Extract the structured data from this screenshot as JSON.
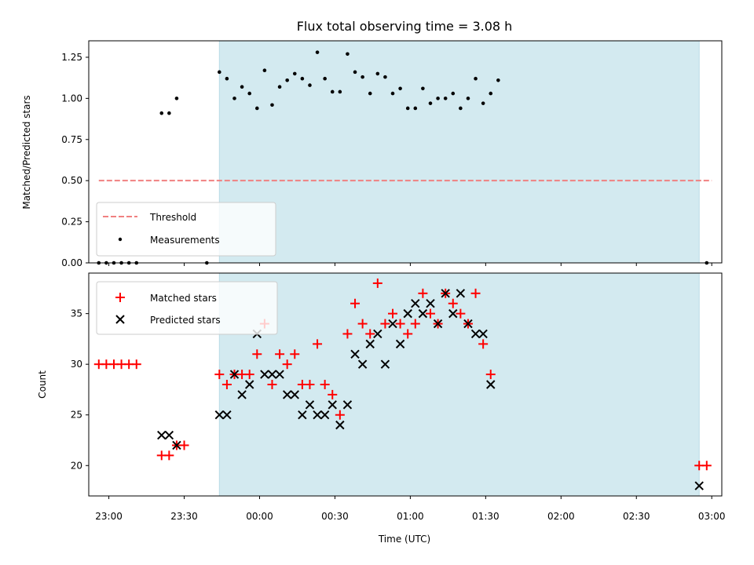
{
  "chart_data": [
    {
      "type": "scatter",
      "title": "Flux total observing time = 3.08 h",
      "ylabel": "Matched/Predicted stars",
      "xlim": [
        "22:52",
        "03:04"
      ],
      "ylim": [
        0,
        1.35
      ],
      "yticks": [
        "0.00",
        "0.25",
        "0.50",
        "0.75",
        "1.00",
        "1.25"
      ],
      "highlight_span": {
        "start": "23:44",
        "end": "02:55",
        "color": "#d3eaf0"
      },
      "legend_position": "lower-left",
      "threshold": {
        "name": "Threshold",
        "y": 0.5,
        "x_start": "22:56",
        "x_end": "03:00",
        "color": "#f08080"
      },
      "series": [
        {
          "name": "Measurements",
          "color": "#000000",
          "points": [
            [
              "22:56",
              0.0
            ],
            [
              "22:59",
              0.0
            ],
            [
              "23:02",
              0.0
            ],
            [
              "23:05",
              0.0
            ],
            [
              "23:08",
              0.0
            ],
            [
              "23:11",
              0.0
            ],
            [
              "23:21",
              0.91
            ],
            [
              "23:24",
              0.91
            ],
            [
              "23:27",
              1.0
            ],
            [
              "23:39",
              0.0
            ],
            [
              "23:44",
              1.16
            ],
            [
              "23:47",
              1.12
            ],
            [
              "23:50",
              1.0
            ],
            [
              "23:53",
              1.07
            ],
            [
              "23:56",
              1.03
            ],
            [
              "23:59",
              0.94
            ],
            [
              "00:02",
              1.17
            ],
            [
              "00:05",
              0.96
            ],
            [
              "00:08",
              1.07
            ],
            [
              "00:11",
              1.11
            ],
            [
              "00:14",
              1.15
            ],
            [
              "00:17",
              1.12
            ],
            [
              "00:20",
              1.08
            ],
            [
              "00:23",
              1.28
            ],
            [
              "00:26",
              1.12
            ],
            [
              "00:29",
              1.04
            ],
            [
              "00:32",
              1.04
            ],
            [
              "00:35",
              1.27
            ],
            [
              "00:38",
              1.16
            ],
            [
              "00:41",
              1.13
            ],
            [
              "00:44",
              1.03
            ],
            [
              "00:47",
              1.15
            ],
            [
              "00:50",
              1.13
            ],
            [
              "00:53",
              1.03
            ],
            [
              "00:56",
              1.06
            ],
            [
              "00:59",
              0.94
            ],
            [
              "01:02",
              0.94
            ],
            [
              "01:05",
              1.06
            ],
            [
              "01:08",
              0.97
            ],
            [
              "01:11",
              1.0
            ],
            [
              "01:14",
              1.0
            ],
            [
              "01:17",
              1.03
            ],
            [
              "01:20",
              0.94
            ],
            [
              "01:23",
              1.0
            ],
            [
              "01:26",
              1.12
            ],
            [
              "01:29",
              0.97
            ],
            [
              "01:32",
              1.03
            ],
            [
              "01:35",
              1.11
            ],
            [
              "02:58",
              0.0
            ]
          ]
        }
      ]
    },
    {
      "type": "scatter",
      "xlabel": "Time (UTC)",
      "ylabel": "Count",
      "xlim": [
        "22:52",
        "03:04"
      ],
      "ylim": [
        17,
        39
      ],
      "xticks": [
        "23:00",
        "23:30",
        "00:00",
        "00:30",
        "01:00",
        "01:30",
        "02:00",
        "02:30",
        "03:00"
      ],
      "yticks": [
        "20",
        "25",
        "30",
        "35"
      ],
      "highlight_span": {
        "start": "23:44",
        "end": "02:55",
        "color": "#d3eaf0"
      },
      "legend_position": "upper-left",
      "series": [
        {
          "name": "Matched stars",
          "marker": "+",
          "color": "#ff0000",
          "points": [
            [
              "22:56",
              30
            ],
            [
              "22:59",
              30
            ],
            [
              "23:02",
              30
            ],
            [
              "23:05",
              30
            ],
            [
              "23:08",
              30
            ],
            [
              "23:11",
              30
            ],
            [
              "23:21",
              21
            ],
            [
              "23:24",
              21
            ],
            [
              "23:27",
              22
            ],
            [
              "23:30",
              22
            ],
            [
              "23:44",
              29
            ],
            [
              "23:47",
              28
            ],
            [
              "23:50",
              29
            ],
            [
              "23:53",
              29
            ],
            [
              "23:56",
              29
            ],
            [
              "23:59",
              31
            ],
            [
              "00:02",
              34
            ],
            [
              "00:05",
              28
            ],
            [
              "00:08",
              31
            ],
            [
              "00:11",
              30
            ],
            [
              "00:14",
              31
            ],
            [
              "00:17",
              28
            ],
            [
              "00:20",
              28
            ],
            [
              "00:23",
              32
            ],
            [
              "00:26",
              28
            ],
            [
              "00:29",
              27
            ],
            [
              "00:32",
              25
            ],
            [
              "00:35",
              33
            ],
            [
              "00:38",
              36
            ],
            [
              "00:41",
              34
            ],
            [
              "00:44",
              33
            ],
            [
              "00:47",
              38
            ],
            [
              "00:50",
              34
            ],
            [
              "00:53",
              35
            ],
            [
              "00:56",
              34
            ],
            [
              "00:59",
              33
            ],
            [
              "01:02",
              34
            ],
            [
              "01:05",
              37
            ],
            [
              "01:08",
              35
            ],
            [
              "01:11",
              34
            ],
            [
              "01:14",
              37
            ],
            [
              "01:17",
              36
            ],
            [
              "01:20",
              35
            ],
            [
              "01:23",
              34
            ],
            [
              "01:26",
              37
            ],
            [
              "01:29",
              32
            ],
            [
              "01:32",
              29
            ],
            [
              "02:55",
              20
            ],
            [
              "02:58",
              20
            ]
          ]
        },
        {
          "name": "Predicted stars",
          "marker": "x",
          "color": "#000000",
          "points": [
            [
              "23:21",
              23
            ],
            [
              "23:24",
              23
            ],
            [
              "23:27",
              22
            ],
            [
              "23:44",
              25
            ],
            [
              "23:47",
              25
            ],
            [
              "23:50",
              29
            ],
            [
              "23:53",
              27
            ],
            [
              "23:56",
              28
            ],
            [
              "23:59",
              33
            ],
            [
              "00:02",
              29
            ],
            [
              "00:05",
              29
            ],
            [
              "00:08",
              29
            ],
            [
              "00:11",
              27
            ],
            [
              "00:14",
              27
            ],
            [
              "00:17",
              25
            ],
            [
              "00:20",
              26
            ],
            [
              "00:23",
              25
            ],
            [
              "00:26",
              25
            ],
            [
              "00:29",
              26
            ],
            [
              "00:32",
              24
            ],
            [
              "00:35",
              26
            ],
            [
              "00:38",
              31
            ],
            [
              "00:41",
              30
            ],
            [
              "00:44",
              32
            ],
            [
              "00:47",
              33
            ],
            [
              "00:50",
              30
            ],
            [
              "00:53",
              34
            ],
            [
              "00:56",
              32
            ],
            [
              "00:59",
              35
            ],
            [
              "01:02",
              36
            ],
            [
              "01:05",
              35
            ],
            [
              "01:08",
              36
            ],
            [
              "01:11",
              34
            ],
            [
              "01:14",
              37
            ],
            [
              "01:17",
              35
            ],
            [
              "01:20",
              37
            ],
            [
              "01:23",
              34
            ],
            [
              "01:26",
              33
            ],
            [
              "01:29",
              33
            ],
            [
              "01:32",
              28
            ],
            [
              "02:55",
              18
            ]
          ]
        }
      ]
    }
  ]
}
